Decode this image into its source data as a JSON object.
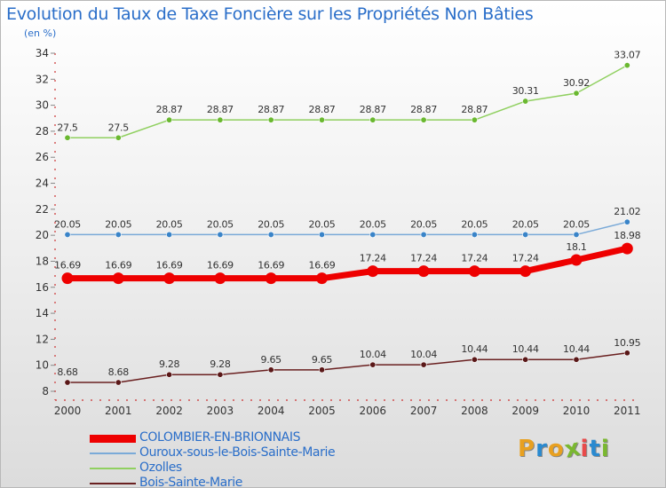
{
  "title": "Evolution du Taux de Taxe Foncière sur les Propriétés Non Bâties",
  "subtitle": "(en %)",
  "logo": {
    "text": "Proxiti",
    "letter_colors": [
      "#e8a020",
      "#2a8ad0",
      "#e8a020",
      "#7ab830",
      "#e84a4a",
      "#2a8ad0",
      "#7ab830"
    ]
  },
  "chart_data": {
    "type": "line",
    "x": [
      "2000",
      "2001",
      "2002",
      "2003",
      "2004",
      "2005",
      "2006",
      "2007",
      "2008",
      "2009",
      "2010",
      "2011"
    ],
    "ylim": [
      8,
      34
    ],
    "yticks": [
      "8",
      "10",
      "12",
      "14",
      "16",
      "18",
      "20",
      "22",
      "24",
      "26",
      "28",
      "30",
      "32",
      "34"
    ],
    "grid": false,
    "legend_position": "bottom-left",
    "series": [
      {
        "name": "Ozolles",
        "color": "#90d060",
        "dot": "#6ab830",
        "width": 1.5,
        "values": [
          27.5,
          27.5,
          28.87,
          28.87,
          28.87,
          28.87,
          28.87,
          28.87,
          28.87,
          30.31,
          30.92,
          33.07
        ],
        "labels": [
          "27.5",
          "27.5",
          "28.87",
          "28.87",
          "28.87",
          "28.87",
          "28.87",
          "28.87",
          "28.87",
          "30.31",
          "30.92",
          "33.07"
        ]
      },
      {
        "name": "Ouroux-sous-le-Bois-Sainte-Marie",
        "color": "#7aaad8",
        "dot": "#3a84c8",
        "width": 1.5,
        "values": [
          20.05,
          20.05,
          20.05,
          20.05,
          20.05,
          20.05,
          20.05,
          20.05,
          20.05,
          20.05,
          20.05,
          21.02
        ],
        "labels": [
          "20.05",
          "20.05",
          "20.05",
          "20.05",
          "20.05",
          "20.05",
          "20.05",
          "20.05",
          "20.05",
          "20.05",
          "20.05",
          "21.02"
        ]
      },
      {
        "name": "COLOMBIER-EN-BRIONNAIS",
        "color": "#ee0000",
        "dot": "#ee0000",
        "width": 7,
        "values": [
          16.69,
          16.69,
          16.69,
          16.69,
          16.69,
          16.69,
          17.24,
          17.24,
          17.24,
          17.24,
          18.1,
          18.98
        ],
        "labels": [
          "16.69",
          "16.69",
          "16.69",
          "16.69",
          "16.69",
          "16.69",
          "17.24",
          "17.24",
          "17.24",
          "17.24",
          "18.1",
          "18.98"
        ]
      },
      {
        "name": "Bois-Sainte-Marie",
        "color": "#6a2020",
        "dot": "#5a1818",
        "width": 1.5,
        "values": [
          8.68,
          8.68,
          9.28,
          9.28,
          9.65,
          9.65,
          10.04,
          10.04,
          10.44,
          10.44,
          10.44,
          10.95
        ],
        "labels": [
          "8.68",
          "8.68",
          "9.28",
          "9.28",
          "9.65",
          "9.65",
          "10.04",
          "10.04",
          "10.44",
          "10.44",
          "10.44",
          "10.95"
        ]
      }
    ],
    "legend_order": [
      2,
      1,
      0,
      3
    ]
  }
}
